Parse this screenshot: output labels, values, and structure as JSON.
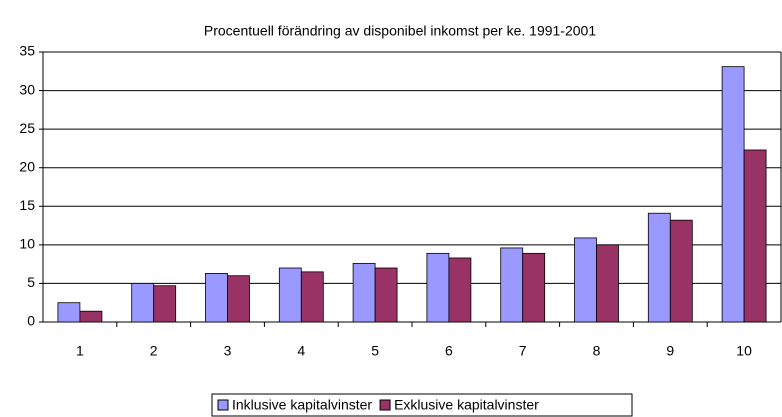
{
  "chart_data": {
    "type": "bar",
    "title": "Procentuell förändring av disponibel inkomst per ke. 1991-2001",
    "categories": [
      "1",
      "2",
      "3",
      "4",
      "5",
      "6",
      "7",
      "8",
      "9",
      "10"
    ],
    "series": [
      {
        "name": "Inklusive kapitalvinster",
        "color": "#9999ff",
        "values": [
          2.5,
          5.0,
          6.3,
          7.0,
          7.6,
          8.9,
          9.6,
          10.9,
          14.1,
          33.1
        ]
      },
      {
        "name": "Exklusive kapitalvinster",
        "color": "#993366",
        "values": [
          1.4,
          4.7,
          6.0,
          6.5,
          7.0,
          8.3,
          8.9,
          10.0,
          13.2,
          22.3
        ]
      }
    ],
    "ylim": [
      0,
      35
    ],
    "yticks": [
      0,
      5,
      10,
      15,
      20,
      25,
      30,
      35
    ],
    "grid": true,
    "legend": "bottom"
  }
}
